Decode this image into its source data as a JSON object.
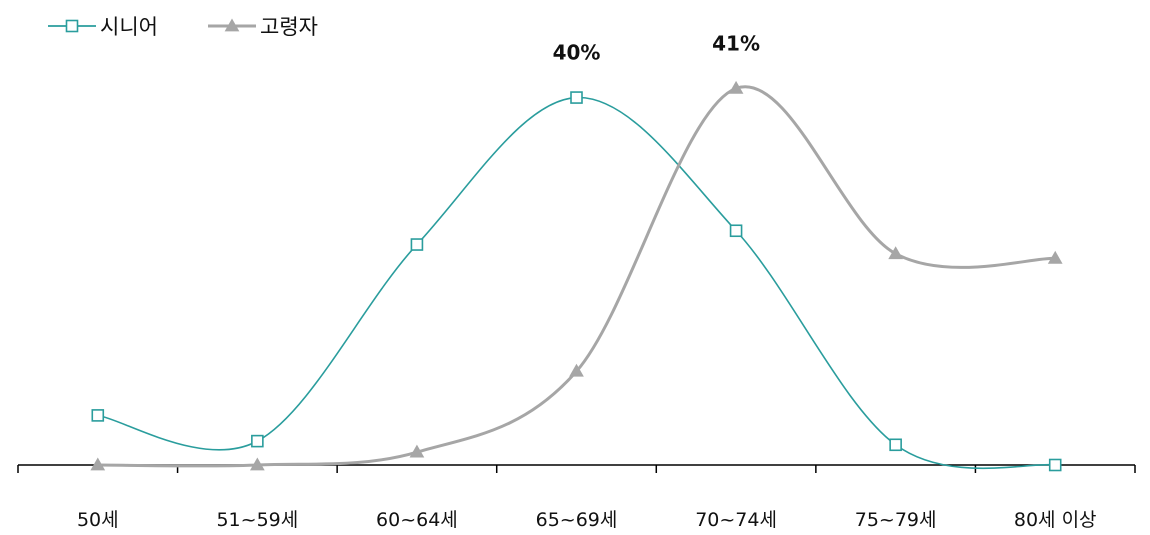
{
  "chart_data": {
    "type": "line",
    "categories": [
      "50세",
      "51~59세",
      "60~64세",
      "65~69세",
      "70~74세",
      "75~79세",
      "80세 이상"
    ],
    "series": [
      {
        "name": "시니어",
        "color": "#2a9d9d",
        "marker": "square",
        "values": [
          5.4,
          2.6,
          24,
          40,
          25.5,
          2.2,
          0
        ]
      },
      {
        "name": "고령자",
        "color": "#a6a6a6",
        "marker": "triangle",
        "values": [
          0,
          0,
          1.4,
          10.2,
          41,
          23,
          22.5
        ]
      }
    ],
    "data_labels": [
      {
        "series": 0,
        "index": 3,
        "text": "40%"
      },
      {
        "series": 1,
        "index": 4,
        "text": "41%"
      }
    ],
    "ylim": [
      0,
      43
    ],
    "legend_position": "top-left",
    "grid": false,
    "smooth": true
  }
}
